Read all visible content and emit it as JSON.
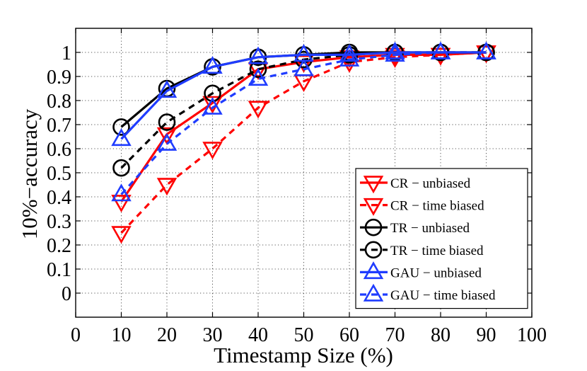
{
  "chart_data": {
    "type": "line",
    "title": "",
    "xlabel": "Timestamp Size (%)",
    "ylabel": "10%−accuracy",
    "xlim": [
      0,
      100
    ],
    "ylim": [
      -0.1,
      1.1
    ],
    "xticks": [
      0,
      10,
      20,
      30,
      40,
      50,
      60,
      70,
      80,
      90,
      100
    ],
    "yticks": [
      0,
      0.1,
      0.2,
      0.3,
      0.4,
      0.5,
      0.6,
      0.7,
      0.8,
      0.9,
      1
    ],
    "ytick_labels": [
      "0",
      "0.1",
      "0.2",
      "0.3",
      "0.4",
      "0.5",
      "0.6",
      "0.7",
      "0.8",
      "0.9",
      "1"
    ],
    "grid": true,
    "legend_position": "bottom-right",
    "x": [
      10,
      20,
      30,
      40,
      50,
      60,
      70,
      80,
      90
    ],
    "series": [
      {
        "name": "CR − unbiased",
        "color": "#ff0000",
        "line": "solid",
        "marker": "triangle-down",
        "values": [
          0.38,
          0.66,
          0.79,
          0.93,
          0.96,
          0.98,
          0.99,
          0.99,
          1.0
        ]
      },
      {
        "name": "CR − time biased",
        "color": "#ff0000",
        "line": "dashed",
        "marker": "triangle-down",
        "values": [
          0.25,
          0.45,
          0.6,
          0.77,
          0.88,
          0.96,
          0.98,
          0.99,
          1.0
        ]
      },
      {
        "name": "TR − unbiased",
        "color": "#000000",
        "line": "solid",
        "marker": "circle",
        "values": [
          0.69,
          0.85,
          0.94,
          0.98,
          0.99,
          1.0,
          1.0,
          1.0,
          1.0
        ]
      },
      {
        "name": "TR − time biased",
        "color": "#000000",
        "line": "dashed",
        "marker": "circle",
        "values": [
          0.52,
          0.71,
          0.83,
          0.93,
          0.97,
          0.99,
          1.0,
          1.0,
          1.0
        ]
      },
      {
        "name": "GAU − unbiased",
        "color": "#1f3cff",
        "line": "solid",
        "marker": "triangle-up",
        "values": [
          0.64,
          0.84,
          0.94,
          0.98,
          0.99,
          0.99,
          1.0,
          1.0,
          1.0
        ]
      },
      {
        "name": "GAU − time biased",
        "color": "#1f3cff",
        "line": "dashed",
        "marker": "triangle-up",
        "values": [
          0.41,
          0.62,
          0.77,
          0.89,
          0.93,
          0.97,
          0.99,
          1.0,
          1.0
        ]
      }
    ]
  }
}
